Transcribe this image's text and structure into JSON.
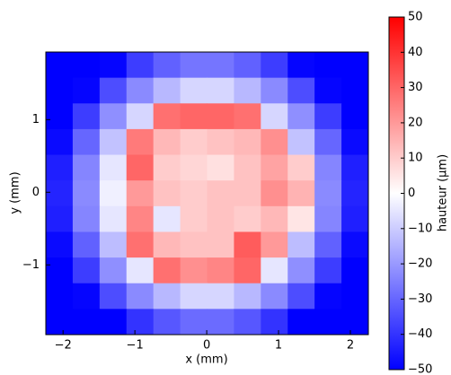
{
  "chart_data": {
    "type": "heatmap",
    "xlabel": "x (mm)",
    "ylabel": "y (mm)",
    "colorbar_label": "hauteur (µm)",
    "xlim": [
      -2.24,
      2.25
    ],
    "ylim": [
      -1.96,
      1.93
    ],
    "xticks": [
      {
        "value": -2,
        "label": "−2"
      },
      {
        "value": -1,
        "label": "−1"
      },
      0,
      1,
      2
    ],
    "yticks": [
      {
        "value": -1,
        "label": "−1"
      },
      0,
      1
    ],
    "colormap": "bwr",
    "clim": [
      -50,
      50
    ],
    "cticks": [
      {
        "value": -50,
        "label": "−50"
      },
      {
        "value": -40,
        "label": "−40"
      },
      {
        "value": -30,
        "label": "−30"
      },
      {
        "value": -20,
        "label": "−20"
      },
      {
        "value": -10,
        "label": "−10"
      },
      0,
      10,
      20,
      30,
      40,
      50
    ],
    "z": [
      [
        -50,
        -50,
        -49,
        -38,
        -31,
        -27,
        -27,
        -31,
        -38,
        -49,
        -50,
        -50
      ],
      [
        -50,
        -49,
        -35,
        -23,
        -14,
        -8,
        -8,
        -14,
        -23,
        -35,
        -49,
        -50
      ],
      [
        -50,
        -38,
        -22,
        -8,
        28,
        30,
        30,
        28,
        -8,
        -22,
        -38,
        -50
      ],
      [
        -48,
        -30,
        -12,
        26,
        14,
        10,
        12,
        14,
        22,
        -12,
        -30,
        -48
      ],
      [
        -44,
        -24,
        -5,
        30,
        10,
        8,
        6,
        12,
        18,
        10,
        -24,
        -44
      ],
      [
        -43,
        -23,
        -3,
        20,
        12,
        10,
        12,
        12,
        22,
        15,
        -23,
        -43
      ],
      [
        -44,
        -24,
        -5,
        24,
        -5,
        10,
        12,
        10,
        14,
        5,
        -24,
        -44
      ],
      [
        -48,
        -31,
        -13,
        28,
        14,
        12,
        12,
        32,
        20,
        -13,
        -31,
        -48
      ],
      [
        -50,
        -38,
        -22,
        -5,
        28,
        22,
        24,
        30,
        -5,
        -22,
        -38,
        -50
      ],
      [
        -50,
        -49,
        -35,
        -23,
        -14,
        -8,
        -8,
        -14,
        -23,
        -35,
        -49,
        -50
      ],
      [
        -50,
        -50,
        -50,
        -40,
        -33,
        -29,
        -29,
        -33,
        -40,
        -50,
        -50,
        -50
      ]
    ]
  }
}
